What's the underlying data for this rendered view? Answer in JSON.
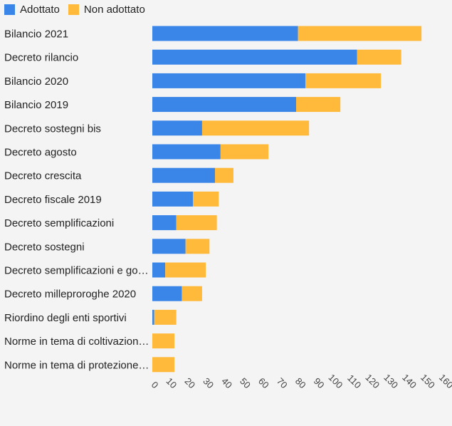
{
  "legend": {
    "adopted_label": "Adottato",
    "not_adopted_label": "Non adottato"
  },
  "colors": {
    "adopted": "#3a86e8",
    "not_adopted": "#ffba3c",
    "label_text": "#222222",
    "tick_text": "#444444"
  },
  "chart_data": {
    "type": "bar",
    "orientation": "horizontal",
    "stacked": true,
    "categories": [
      "Bilancio 2021",
      "Decreto rilancio",
      "Bilancio 2020",
      "Bilancio 2019",
      "Decreto sostegni bis",
      "Decreto agosto",
      "Decreto crescita",
      "Decreto fiscale 2019",
      "Decreto semplificazioni",
      "Decreto sostegni",
      "Decreto semplificazioni e go…",
      "Decreto milleproroghe 2020",
      "Riordino degli enti sportivi",
      "Norme in tema di coltivazion…",
      "Norme in tema di protezione…"
    ],
    "series": [
      {
        "name": "Adottato",
        "values": [
          79,
          111,
          83,
          78,
          27,
          37,
          34,
          22,
          13,
          18,
          7,
          16,
          1,
          0,
          0
        ]
      },
      {
        "name": "Non adottato",
        "values": [
          67,
          24,
          41,
          24,
          58,
          26,
          10,
          14,
          22,
          13,
          22,
          11,
          12,
          12,
          12
        ]
      }
    ],
    "xlim": [
      0,
      160
    ],
    "xticks": [
      0,
      10,
      20,
      30,
      40,
      50,
      60,
      70,
      80,
      90,
      100,
      110,
      120,
      130,
      140,
      150,
      160
    ],
    "legend_position": "top-left",
    "grid": false
  }
}
